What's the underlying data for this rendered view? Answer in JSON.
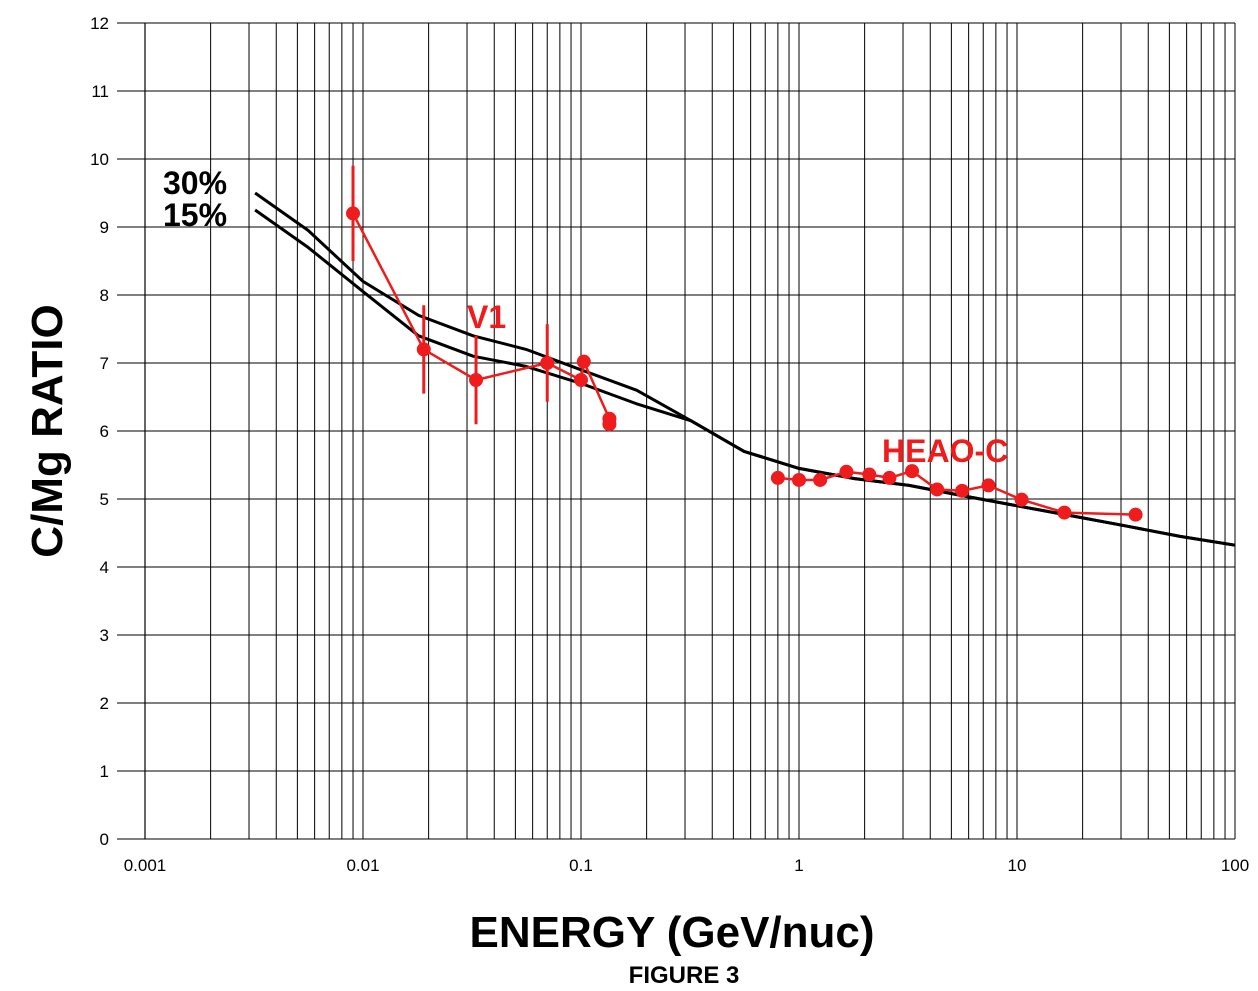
{
  "chart_data": {
    "type": "line",
    "title": "",
    "caption": "FIGURE 3",
    "xlabel": "ENERGY (GeV/nuc)",
    "ylabel": "C/Mg RATIO",
    "x_scale": "log",
    "xlim": [
      0.001,
      100
    ],
    "ylim": [
      0,
      12
    ],
    "x_ticks": [
      "0.001",
      "0.01",
      "0.1",
      "1",
      "10",
      "100"
    ],
    "y_ticks": [
      "0",
      "1",
      "2",
      "3",
      "4",
      "5",
      "6",
      "7",
      "8",
      "9",
      "10",
      "11",
      "12"
    ],
    "grid": true,
    "series": [
      {
        "name": "30%",
        "kind": "model",
        "color": "#000000",
        "x": [
          0.0032,
          0.0056,
          0.01,
          0.018,
          0.032,
          0.056,
          0.1,
          0.18,
          0.32,
          0.56,
          1.0,
          1.8,
          3.2,
          5.6,
          10,
          18,
          32,
          56,
          100
        ],
        "y": [
          9.5,
          8.95,
          8.2,
          7.7,
          7.4,
          7.2,
          6.9,
          6.6,
          6.15,
          5.7,
          5.45,
          5.3,
          5.2,
          5.05,
          4.9,
          4.75,
          4.6,
          4.45,
          4.32
        ]
      },
      {
        "name": "15%",
        "kind": "model",
        "color": "#000000",
        "x": [
          0.0032,
          0.0056,
          0.01,
          0.018,
          0.032,
          0.056,
          0.1,
          0.18,
          0.32,
          0.56,
          1.0,
          1.8,
          3.2,
          5.6,
          10,
          18,
          32,
          56,
          100
        ],
        "y": [
          9.25,
          8.7,
          8.05,
          7.4,
          7.1,
          6.95,
          6.7,
          6.4,
          6.15,
          5.7,
          5.45,
          5.3,
          5.2,
          5.05,
          4.9,
          4.75,
          4.6,
          4.45,
          4.32
        ]
      },
      {
        "name": "V1",
        "kind": "data",
        "color": "#ee1c1c",
        "x": [
          0.009,
          0.019,
          0.033,
          0.07,
          0.1,
          0.103,
          0.135,
          0.135
        ],
        "y": [
          9.2,
          7.2,
          6.75,
          7.0,
          6.75,
          7.02,
          6.18,
          6.1
        ],
        "err": [
          0.7,
          0.65,
          0.65,
          0.57,
          0,
          0,
          0,
          0
        ]
      },
      {
        "name": "HEAO-C",
        "kind": "data",
        "color": "#ee1c1c",
        "x": [
          0.8,
          1.0,
          1.25,
          1.65,
          2.1,
          2.6,
          3.3,
          4.3,
          5.6,
          7.4,
          10.5,
          16.5,
          35
        ],
        "y": [
          5.31,
          5.28,
          5.28,
          5.4,
          5.36,
          5.31,
          5.41,
          5.14,
          5.12,
          5.2,
          4.99,
          4.8,
          4.77
        ],
        "err": [
          0,
          0,
          0,
          0,
          0,
          0,
          0,
          0,
          0,
          0,
          0,
          0,
          0
        ]
      }
    ]
  }
}
